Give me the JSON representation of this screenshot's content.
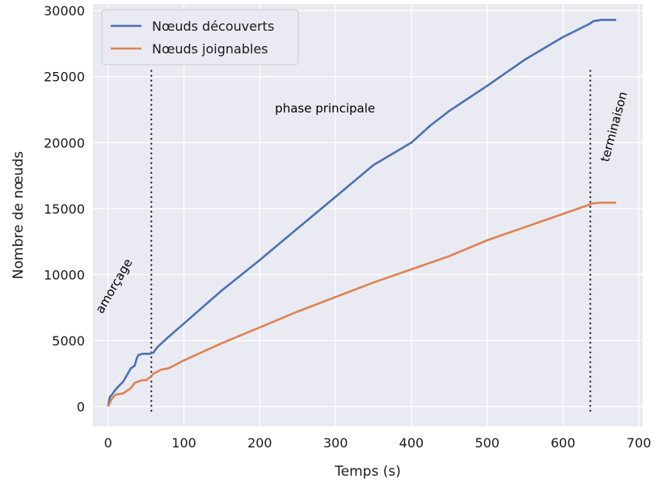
{
  "chart_data": {
    "type": "line",
    "title": "",
    "xlabel": "Temps (s)",
    "ylabel": "Nombre de nœuds",
    "xlim": [
      -20,
      705
    ],
    "ylim": [
      -1500,
      30500
    ],
    "xticks": [
      0,
      100,
      200,
      300,
      400,
      500,
      600,
      700
    ],
    "yticks": [
      0,
      5000,
      10000,
      15000,
      20000,
      25000,
      30000
    ],
    "grid": true,
    "legend_position": "top-left",
    "colors": {
      "background": "#eaeaf2",
      "grid": "#ffffff",
      "series1": "#4c72b0",
      "series2": "#dd8452"
    },
    "series": [
      {
        "name": "Nœuds découverts",
        "x": [
          0,
          2,
          5,
          10,
          15,
          20,
          25,
          30,
          35,
          38,
          40,
          45,
          55,
          60,
          65,
          80,
          100,
          150,
          200,
          250,
          300,
          350,
          400,
          425,
          450,
          500,
          550,
          600,
          635,
          640,
          650,
          670
        ],
        "y": [
          0,
          700,
          900,
          1300,
          1600,
          1900,
          2400,
          2900,
          3100,
          3700,
          3900,
          4000,
          4000,
          4100,
          4500,
          5300,
          6300,
          8800,
          11100,
          13500,
          15900,
          18300,
          20000,
          21300,
          22400,
          24300,
          26300,
          28000,
          29000,
          29200,
          29300,
          29300
        ]
      },
      {
        "name": "Nœuds joignables",
        "x": [
          0,
          5,
          10,
          20,
          30,
          35,
          40,
          45,
          50,
          55,
          60,
          70,
          80,
          100,
          150,
          200,
          250,
          300,
          350,
          400,
          450,
          500,
          550,
          600,
          635,
          640,
          650,
          670
        ],
        "y": [
          0,
          600,
          900,
          1000,
          1400,
          1800,
          1900,
          2000,
          2000,
          2200,
          2500,
          2800,
          2900,
          3500,
          4800,
          6000,
          7200,
          8300,
          9400,
          10400,
          11400,
          12600,
          13600,
          14600,
          15300,
          15400,
          15450,
          15450
        ]
      }
    ],
    "annotations": [
      {
        "text": "amorçage",
        "x": 57
      },
      {
        "text": "phase principale",
        "x": 300
      },
      {
        "text": "terminaison",
        "x": 636
      }
    ]
  }
}
